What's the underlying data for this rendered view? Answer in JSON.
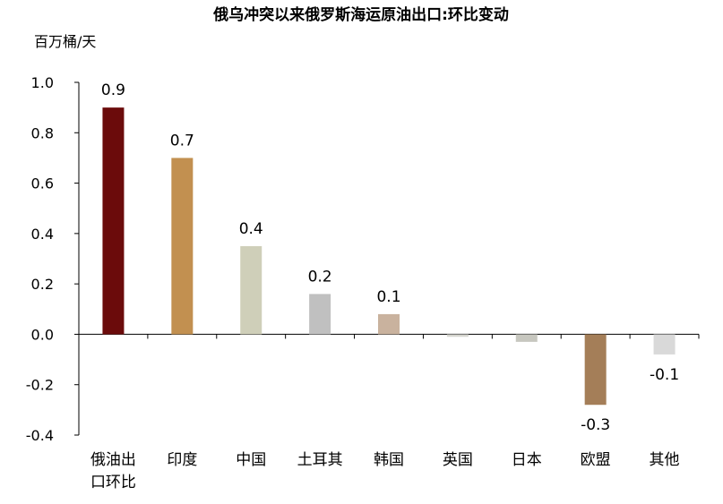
{
  "chart_data": {
    "type": "bar",
    "title": "俄乌冲突以来俄罗斯海运原油出口:环比变动",
    "ylabel": "百万桶/天",
    "xlabel": "",
    "ylim": [
      -0.4,
      1.0
    ],
    "yticks": [
      "1.0",
      "0.8",
      "0.6",
      "0.4",
      "0.2",
      "0.0",
      "-0.2",
      "-0.4"
    ],
    "ytick_values": [
      1.0,
      0.8,
      0.6,
      0.4,
      0.2,
      0.0,
      -0.2,
      -0.4
    ],
    "grid": false,
    "categories": [
      [
        "俄油出",
        "口环比"
      ],
      [
        "印度"
      ],
      [
        "中国"
      ],
      [
        "土耳其"
      ],
      [
        "韩国"
      ],
      [
        "英国"
      ],
      [
        "日本"
      ],
      [
        "欧盟"
      ],
      [
        "其他"
      ]
    ],
    "values": [
      0.9,
      0.7,
      0.35,
      0.16,
      0.08,
      -0.01,
      -0.03,
      -0.28,
      -0.08
    ],
    "data_labels": [
      "0.9",
      "0.7",
      "0.4",
      "0.2",
      "0.1",
      "",
      "",
      "-0.3",
      "-0.1"
    ],
    "colors": [
      "#6b0b0b",
      "#c29050",
      "#cfcfb9",
      "#c0c0c0",
      "#c9b29e",
      "#d6d6d0",
      "#c7c7bf",
      "#a47e58",
      "#d9d9d9"
    ]
  }
}
